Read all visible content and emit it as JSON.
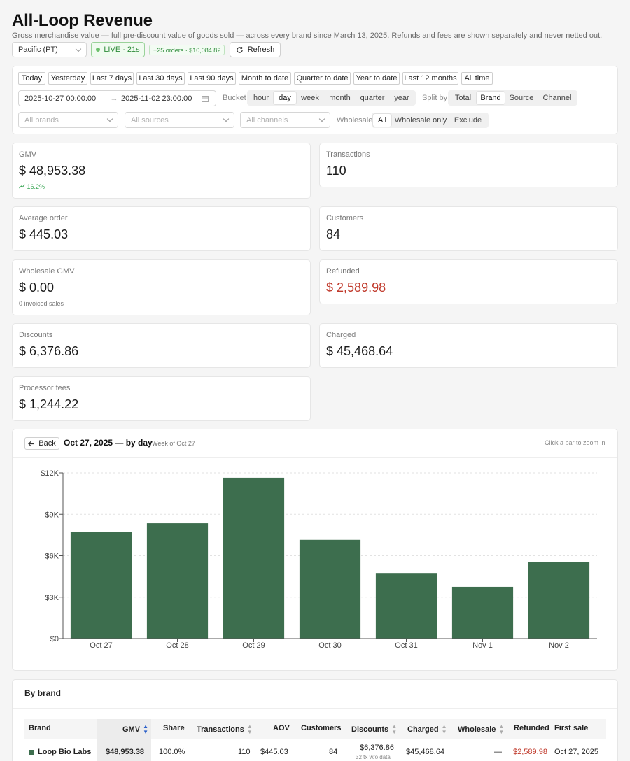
{
  "header": {
    "title": "All-Loop Revenue",
    "subtitle": "Gross merchandise value — full pre-discount value of goods sold — across every brand since March 13, 2025. Refunds and fees are shown separately and never netted out."
  },
  "toolbar": {
    "timezone": "Pacific (PT)",
    "live_label": "LIVE · 21s",
    "orders_badge": "+25 orders · $10,084.82",
    "refresh_label": "Refresh"
  },
  "filters": {
    "presets": [
      "Today",
      "Yesterday",
      "Last 7 days",
      "Last 30 days",
      "Last 90 days",
      "Month to date",
      "Quarter to date",
      "Year to date",
      "Last 12 months",
      "All time"
    ],
    "date_start": "2025-10-27 00:00:00",
    "date_end": "2025-11-02 23:00:00",
    "date_sep": "→",
    "bucket_label": "Bucket",
    "bucket_options": [
      "hour",
      "day",
      "week",
      "month",
      "quarter",
      "year"
    ],
    "bucket_selected": "day",
    "split_label": "Split by",
    "split_options": [
      "Total",
      "Brand",
      "Source",
      "Channel"
    ],
    "split_selected": "Brand",
    "brands_placeholder": "All brands",
    "sources_placeholder": "All sources",
    "channels_placeholder": "All channels",
    "wholesale_label": "Wholesale",
    "wholesale_options": [
      "All",
      "Wholesale only",
      "Exclude"
    ],
    "wholesale_selected": "All"
  },
  "metrics": {
    "gmv": {
      "label": "GMV",
      "currency": "$",
      "value": "48,953.38",
      "delta": "16.2%"
    },
    "transactions": {
      "label": "Transactions",
      "value": "110"
    },
    "aov": {
      "label": "Average order",
      "currency": "$",
      "value": "445.03"
    },
    "customers": {
      "label": "Customers",
      "value": "84"
    },
    "wholesale": {
      "label": "Wholesale GMV",
      "currency": "$",
      "value": "0.00",
      "sub": "0 invoiced sales"
    },
    "refunded": {
      "label": "Refunded",
      "currency": "$",
      "value": "2,589.98"
    },
    "discounts": {
      "label": "Discounts",
      "currency": "$",
      "value": "6,376.86"
    },
    "charged": {
      "label": "Charged",
      "currency": "$",
      "value": "45,468.64"
    },
    "fees": {
      "label": "Processor fees",
      "currency": "$",
      "value": "1,244.22"
    }
  },
  "chart_header": {
    "back_label": "Back",
    "title": "Oct 27, 2025 — by day",
    "week_label": "Week of Oct 27",
    "hint": "Click a bar to zoom in"
  },
  "chart_data": {
    "type": "bar",
    "categories": [
      "Oct 27",
      "Oct 28",
      "Oct 29",
      "Oct 30",
      "Oct 31",
      "Nov 1",
      "Nov 2"
    ],
    "values": [
      7700,
      8350,
      11650,
      7150,
      4750,
      3750,
      5550
    ],
    "ylim": [
      0,
      12000
    ],
    "yticks": [
      0,
      3000,
      6000,
      9000,
      12000
    ],
    "ytick_labels": [
      "$0",
      "$3K",
      "$6K",
      "$9K",
      "$12K"
    ],
    "color": "#3d6e4e",
    "grid": true
  },
  "brand_table": {
    "title": "By brand",
    "columns": [
      "Brand",
      "GMV",
      "Share",
      "Transactions",
      "AOV",
      "Customers",
      "Discounts",
      "Charged",
      "Wholesale",
      "Refunded",
      "First sale"
    ],
    "rows": [
      {
        "brand": "Loop Bio Labs",
        "color": "#3d6e4e",
        "gmv": "$48,953.38",
        "share": "100.0%",
        "transactions": "110",
        "aov": "$445.03",
        "customers": "84",
        "discounts": "$6,376.86",
        "discounts_note": "32 tx w/o data",
        "charged": "$45,468.64",
        "wholesale": "—",
        "refunded": "$2,589.98",
        "first_sale": "Oct 27, 2025"
      }
    ]
  }
}
